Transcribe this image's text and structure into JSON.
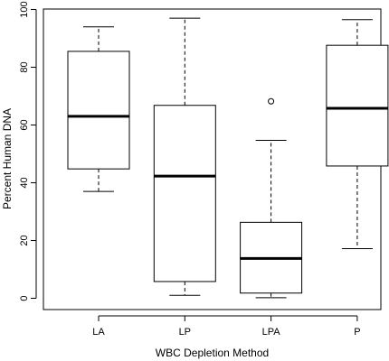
{
  "chart_data": {
    "type": "boxplot",
    "title": "",
    "xlabel": "WBC Depletion Method",
    "ylabel": "Percent Human DNA",
    "ylim": [
      0,
      100
    ],
    "yticks": [
      0,
      20,
      40,
      60,
      80,
      100
    ],
    "grid": false,
    "legend": "none",
    "categories": [
      "LA",
      "LP",
      "LPA",
      "P"
    ],
    "boxes": [
      {
        "category": "LA",
        "whisker_low": 37,
        "q1": 44.8,
        "median": 63,
        "q3": 85.5,
        "whisker_high": 94,
        "outliers": []
      },
      {
        "category": "LP",
        "whisker_low": 1,
        "q1": 5.8,
        "median": 42.3,
        "q3": 66.8,
        "whisker_high": 97,
        "outliers": []
      },
      {
        "category": "LPA",
        "whisker_low": 0.2,
        "q1": 1.8,
        "median": 13.8,
        "q3": 26.3,
        "whisker_high": 54.7,
        "outliers": [
          68.2
        ]
      },
      {
        "category": "P",
        "whisker_low": 17.2,
        "q1": 45.8,
        "median": 65.8,
        "q3": 87.6,
        "whisker_high": 96.5,
        "outliers": []
      }
    ]
  }
}
